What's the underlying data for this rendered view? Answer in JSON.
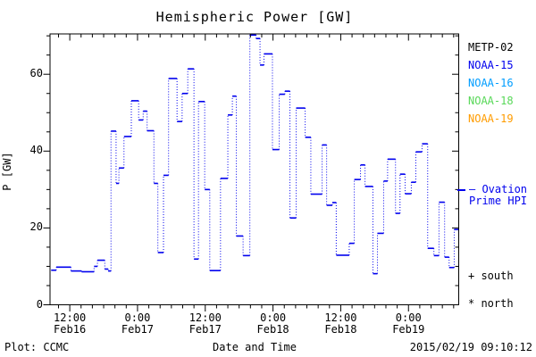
{
  "title": "Hemispheric Power [GW]",
  "colors": {
    "curve": "#0000ee",
    "axis": "#000000",
    "metp02": "#000000",
    "noaa15": "#0000ee",
    "noaa16": "#009dff",
    "noaa18": "#58d858",
    "noaa19": "#ff9c00",
    "model_legend": "#0000ee"
  },
  "legend": {
    "satellites": [
      {
        "label": "METP-02",
        "color": "#000000"
      },
      {
        "label": "NOAA-15",
        "color": "#0000ee"
      },
      {
        "label": "NOAA-16",
        "color": "#009dff"
      },
      {
        "label": "NOAA-18",
        "color": "#58d858"
      },
      {
        "label": "NOAA-19",
        "color": "#ff9c00"
      }
    ],
    "model_line1": "— Ovation",
    "model_line2": "Prime HPI",
    "marker_south": "+ south",
    "marker_north": "* north"
  },
  "footer": {
    "left": "Plot: CCMC",
    "center": "Date and Time",
    "right": "2015/02/19 09:10:12"
  },
  "axes": {
    "y_title": "P [GW]",
    "x_title": "Date and Time",
    "y_major_ticks": [
      {
        "v": 0,
        "label": "0"
      },
      {
        "v": 20,
        "label": "20"
      },
      {
        "v": 40,
        "label": "40"
      },
      {
        "v": 60,
        "label": "60"
      }
    ],
    "x_major_ticks": [
      {
        "t": 12,
        "time": "12:00",
        "date": "Feb16"
      },
      {
        "t": 24,
        "time": "0:00",
        "date": "Feb17"
      },
      {
        "t": 36,
        "time": "12:00",
        "date": "Feb17"
      },
      {
        "t": 48,
        "time": "0:00",
        "date": "Feb18"
      },
      {
        "t": 60,
        "time": "12:00",
        "date": "Feb18"
      },
      {
        "t": 72,
        "time": "0:00",
        "date": "Feb19"
      }
    ]
  },
  "chart_data": {
    "type": "line",
    "subtype": "step-after",
    "title": "Hemispheric Power [GW]",
    "xlabel": "Date and Time",
    "ylabel": "P [GW]",
    "series_name": "NOAA-15 Hemispheric Power",
    "x_units": "hours since 2015-02-16 00:00 UT",
    "xlim": [
      8.5,
      80.9
    ],
    "ylim": [
      0,
      70.5
    ],
    "x_minor_step_hours": 2,
    "y_minor_step": 5,
    "grid": false,
    "legend_position": "right outside",
    "t_end": 80.9,
    "points": [
      [
        8.7,
        9.0
      ],
      [
        9.6,
        9.8
      ],
      [
        12.2,
        8.8
      ],
      [
        14.1,
        8.6
      ],
      [
        16.3,
        10.0
      ],
      [
        16.9,
        11.6
      ],
      [
        18.2,
        9.3
      ],
      [
        18.8,
        8.8
      ],
      [
        19.3,
        45.2
      ],
      [
        20.2,
        31.6
      ],
      [
        20.7,
        35.6
      ],
      [
        21.6,
        43.8
      ],
      [
        22.9,
        53.1
      ],
      [
        24.2,
        48.1
      ],
      [
        25.0,
        50.4
      ],
      [
        25.7,
        45.3
      ],
      [
        26.9,
        31.6
      ],
      [
        27.6,
        13.6
      ],
      [
        28.6,
        33.7
      ],
      [
        29.5,
        58.9
      ],
      [
        31.0,
        47.7
      ],
      [
        31.9,
        55.0
      ],
      [
        32.9,
        61.4
      ],
      [
        34.0,
        11.9
      ],
      [
        34.8,
        52.9
      ],
      [
        35.9,
        30.0
      ],
      [
        36.8,
        8.9
      ],
      [
        38.7,
        32.9
      ],
      [
        40.0,
        49.4
      ],
      [
        40.8,
        54.3
      ],
      [
        41.5,
        17.9
      ],
      [
        42.7,
        12.8
      ],
      [
        43.9,
        70.2
      ],
      [
        45.0,
        69.3
      ],
      [
        45.7,
        62.4
      ],
      [
        46.4,
        65.3
      ],
      [
        47.9,
        40.4
      ],
      [
        49.1,
        54.8
      ],
      [
        50.1,
        55.6
      ],
      [
        51.0,
        22.6
      ],
      [
        52.1,
        51.2
      ],
      [
        53.7,
        43.6
      ],
      [
        54.7,
        28.8
      ],
      [
        56.7,
        41.6
      ],
      [
        57.5,
        25.9
      ],
      [
        58.5,
        26.6
      ],
      [
        59.2,
        12.9
      ],
      [
        61.5,
        16.0
      ],
      [
        62.4,
        32.6
      ],
      [
        63.5,
        36.4
      ],
      [
        64.3,
        30.8
      ],
      [
        65.7,
        8.1
      ],
      [
        66.5,
        18.6
      ],
      [
        67.6,
        32.2
      ],
      [
        68.3,
        37.9
      ],
      [
        69.7,
        23.8
      ],
      [
        70.5,
        34.0
      ],
      [
        71.4,
        28.9
      ],
      [
        72.5,
        31.9
      ],
      [
        73.3,
        39.8
      ],
      [
        74.4,
        41.9
      ],
      [
        75.4,
        14.7
      ],
      [
        76.5,
        12.8
      ],
      [
        77.4,
        26.7
      ],
      [
        78.4,
        12.4
      ],
      [
        79.2,
        9.7
      ],
      [
        80.1,
        19.6
      ]
    ]
  }
}
